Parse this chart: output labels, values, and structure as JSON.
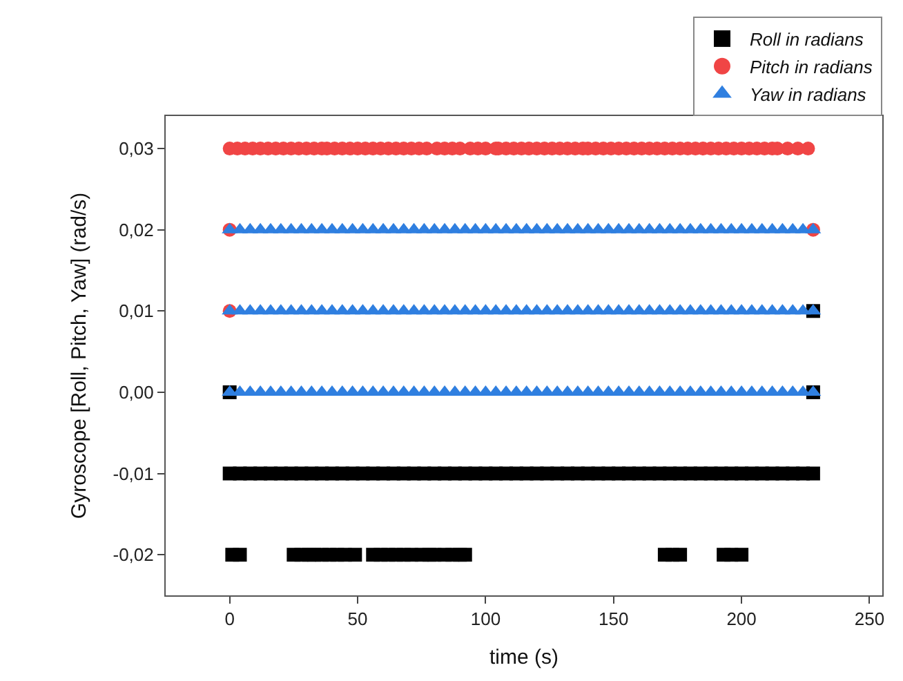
{
  "chart_data": {
    "type": "scatter",
    "xlabel": "time (s)",
    "ylabel": "Gyroscope [Roll, Pitch, Yaw] (rad/s)",
    "xlim": [
      -25,
      255
    ],
    "xticks": [
      0,
      50,
      100,
      150,
      200,
      250
    ],
    "ylim": [
      -0.025,
      0.034
    ],
    "yticks": [
      {
        "value": -0.02,
        "label": "-0,02"
      },
      {
        "value": -0.01,
        "label": "-0,01"
      },
      {
        "value": 0,
        "label": "0,00"
      },
      {
        "value": 0.01,
        "label": "0,01"
      },
      {
        "value": 0.02,
        "label": "0,02"
      },
      {
        "value": 0.03,
        "label": "0,03"
      }
    ],
    "legend": "top right",
    "series": [
      {
        "name": "Roll in radians",
        "color": "#000000",
        "marker": "square",
        "x": [
          1,
          4,
          25,
          28,
          31,
          33,
          36,
          39,
          42,
          45,
          49,
          56,
          59,
          62,
          65,
          68,
          71,
          75,
          78,
          80,
          84,
          87,
          90,
          92,
          170,
          173,
          176,
          193,
          196,
          200,
          0,
          4,
          8,
          12,
          16,
          20,
          24,
          28,
          32,
          36,
          40,
          44,
          48,
          52,
          56,
          60,
          64,
          68,
          72,
          76,
          80,
          84,
          88,
          92,
          96,
          100,
          104,
          108,
          112,
          116,
          120,
          124,
          128,
          132,
          136,
          140,
          144,
          148,
          152,
          156,
          160,
          164,
          168,
          172,
          176,
          180,
          184,
          188,
          192,
          196,
          200,
          204,
          208,
          212,
          216,
          220,
          224,
          228,
          0,
          228,
          228
        ],
        "values": [
          -0.02,
          -0.02,
          -0.02,
          -0.02,
          -0.02,
          -0.02,
          -0.02,
          -0.02,
          -0.02,
          -0.02,
          -0.02,
          -0.02,
          -0.02,
          -0.02,
          -0.02,
          -0.02,
          -0.02,
          -0.02,
          -0.02,
          -0.02,
          -0.02,
          -0.02,
          -0.02,
          -0.02,
          -0.02,
          -0.02,
          -0.02,
          -0.02,
          -0.02,
          -0.02,
          -0.01,
          -0.01,
          -0.01,
          -0.01,
          -0.01,
          -0.01,
          -0.01,
          -0.01,
          -0.01,
          -0.01,
          -0.01,
          -0.01,
          -0.01,
          -0.01,
          -0.01,
          -0.01,
          -0.01,
          -0.01,
          -0.01,
          -0.01,
          -0.01,
          -0.01,
          -0.01,
          -0.01,
          -0.01,
          -0.01,
          -0.01,
          -0.01,
          -0.01,
          -0.01,
          -0.01,
          -0.01,
          -0.01,
          -0.01,
          -0.01,
          -0.01,
          -0.01,
          -0.01,
          -0.01,
          -0.01,
          -0.01,
          -0.01,
          -0.01,
          -0.01,
          -0.01,
          -0.01,
          -0.01,
          -0.01,
          -0.01,
          -0.01,
          -0.01,
          -0.01,
          -0.01,
          -0.01,
          -0.01,
          -0.01,
          -0.01,
          -0.01,
          0,
          0,
          0.01
        ]
      },
      {
        "name": "Pitch in radians",
        "color": "#f04545",
        "marker": "circle",
        "x": [
          0,
          3,
          6,
          9,
          12,
          15,
          18,
          21,
          24,
          27,
          30,
          33,
          36,
          38,
          41,
          44,
          47,
          50,
          53,
          56,
          59,
          62,
          65,
          68,
          71,
          74,
          77,
          81,
          84,
          87,
          90,
          94,
          97,
          100,
          104,
          105,
          108,
          111,
          114,
          117,
          120,
          123,
          126,
          129,
          132,
          135,
          138,
          140,
          143,
          146,
          149,
          152,
          155,
          158,
          161,
          164,
          167,
          170,
          173,
          176,
          179,
          182,
          185,
          188,
          191,
          194,
          197,
          200,
          203,
          206,
          209,
          212,
          214,
          218,
          222,
          226,
          0,
          228,
          0
        ],
        "values": [
          0.03,
          0.03,
          0.03,
          0.03,
          0.03,
          0.03,
          0.03,
          0.03,
          0.03,
          0.03,
          0.03,
          0.03,
          0.03,
          0.03,
          0.03,
          0.03,
          0.03,
          0.03,
          0.03,
          0.03,
          0.03,
          0.03,
          0.03,
          0.03,
          0.03,
          0.03,
          0.03,
          0.03,
          0.03,
          0.03,
          0.03,
          0.03,
          0.03,
          0.03,
          0.03,
          0.03,
          0.03,
          0.03,
          0.03,
          0.03,
          0.03,
          0.03,
          0.03,
          0.03,
          0.03,
          0.03,
          0.03,
          0.03,
          0.03,
          0.03,
          0.03,
          0.03,
          0.03,
          0.03,
          0.03,
          0.03,
          0.03,
          0.03,
          0.03,
          0.03,
          0.03,
          0.03,
          0.03,
          0.03,
          0.03,
          0.03,
          0.03,
          0.03,
          0.03,
          0.03,
          0.03,
          0.03,
          0.03,
          0.03,
          0.03,
          0.03,
          0.02,
          0.02,
          0.01
        ]
      },
      {
        "name": "Yaw in radians",
        "color": "#2f7fe0",
        "marker": "triangle",
        "x": [
          0,
          4,
          8,
          12,
          16,
          20,
          24,
          28,
          32,
          36,
          40,
          44,
          48,
          52,
          56,
          60,
          64,
          68,
          72,
          76,
          80,
          84,
          88,
          92,
          96,
          100,
          104,
          108,
          112,
          116,
          120,
          124,
          128,
          132,
          136,
          140,
          144,
          148,
          152,
          156,
          160,
          164,
          168,
          172,
          176,
          180,
          184,
          188,
          192,
          196,
          200,
          204,
          208,
          212,
          216,
          220,
          224,
          228,
          0,
          4,
          8,
          12,
          16,
          20,
          24,
          28,
          32,
          36,
          40,
          44,
          48,
          52,
          56,
          60,
          64,
          68,
          72,
          76,
          80,
          84,
          88,
          92,
          96,
          100,
          104,
          108,
          112,
          116,
          120,
          124,
          128,
          132,
          136,
          140,
          144,
          148,
          152,
          156,
          160,
          164,
          168,
          172,
          176,
          180,
          184,
          188,
          192,
          196,
          200,
          204,
          208,
          212,
          216,
          220,
          224,
          228,
          0,
          4,
          8,
          12,
          16,
          20,
          24,
          28,
          32,
          36,
          40,
          44,
          48,
          52,
          56,
          60,
          64,
          68,
          72,
          76,
          80,
          84,
          88,
          92,
          96,
          100,
          104,
          108,
          112,
          116,
          120,
          124,
          128,
          132,
          136,
          140,
          144,
          148,
          152,
          156,
          160,
          164,
          168,
          172,
          176,
          180,
          184,
          188,
          192,
          196,
          200,
          204,
          208,
          212,
          216,
          220,
          224,
          228
        ],
        "values": [
          0.02,
          0.02,
          0.02,
          0.02,
          0.02,
          0.02,
          0.02,
          0.02,
          0.02,
          0.02,
          0.02,
          0.02,
          0.02,
          0.02,
          0.02,
          0.02,
          0.02,
          0.02,
          0.02,
          0.02,
          0.02,
          0.02,
          0.02,
          0.02,
          0.02,
          0.02,
          0.02,
          0.02,
          0.02,
          0.02,
          0.02,
          0.02,
          0.02,
          0.02,
          0.02,
          0.02,
          0.02,
          0.02,
          0.02,
          0.02,
          0.02,
          0.02,
          0.02,
          0.02,
          0.02,
          0.02,
          0.02,
          0.02,
          0.02,
          0.02,
          0.02,
          0.02,
          0.02,
          0.02,
          0.02,
          0.02,
          0.02,
          0.02,
          0.01,
          0.01,
          0.01,
          0.01,
          0.01,
          0.01,
          0.01,
          0.01,
          0.01,
          0.01,
          0.01,
          0.01,
          0.01,
          0.01,
          0.01,
          0.01,
          0.01,
          0.01,
          0.01,
          0.01,
          0.01,
          0.01,
          0.01,
          0.01,
          0.01,
          0.01,
          0.01,
          0.01,
          0.01,
          0.01,
          0.01,
          0.01,
          0.01,
          0.01,
          0.01,
          0.01,
          0.01,
          0.01,
          0.01,
          0.01,
          0.01,
          0.01,
          0.01,
          0.01,
          0.01,
          0.01,
          0.01,
          0.01,
          0.01,
          0.01,
          0.01,
          0.01,
          0.01,
          0.01,
          0.01,
          0.01,
          0.01,
          0.01,
          0,
          0,
          0,
          0,
          0,
          0,
          0,
          0,
          0,
          0,
          0,
          0,
          0,
          0,
          0,
          0,
          0,
          0,
          0,
          0,
          0,
          0,
          0,
          0,
          0,
          0,
          0,
          0,
          0,
          0,
          0,
          0,
          0,
          0,
          0,
          0,
          0,
          0,
          0,
          0,
          0,
          0,
          0,
          0,
          0,
          0,
          0,
          0,
          0,
          0,
          0,
          0,
          0,
          0,
          0,
          0,
          0,
          0
        ]
      }
    ]
  }
}
